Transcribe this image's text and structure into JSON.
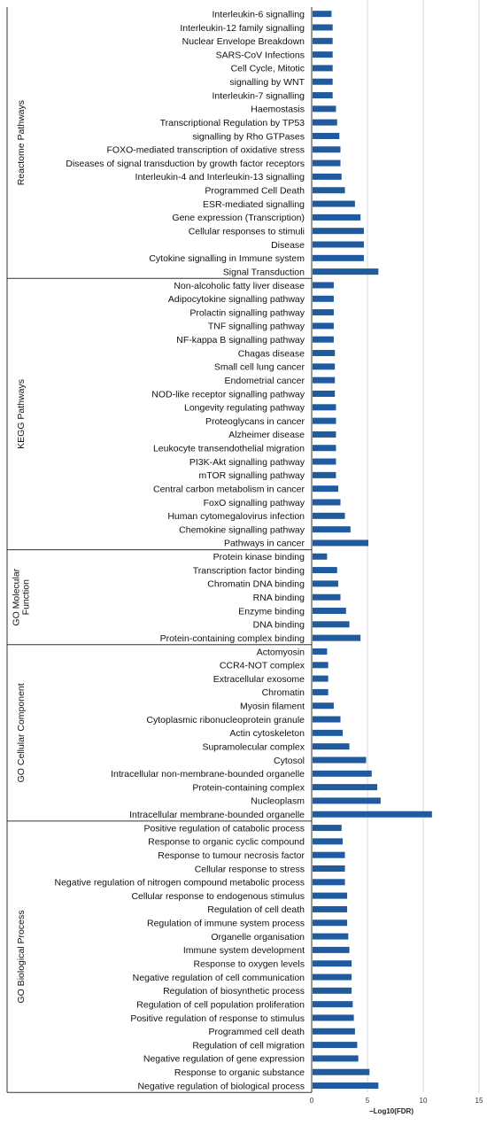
{
  "chart_data": {
    "type": "bar",
    "orientation": "horizontal",
    "xlabel": "−Log10(FDR)",
    "xlim": [
      0,
      15
    ],
    "xticks": [
      "0",
      "5",
      "10",
      "15"
    ],
    "grid": true,
    "legend": "none",
    "bar_color": "#1f5b9e",
    "groups": [
      {
        "name": "Reactome Pathways",
        "categories": [
          "Interleukin-6 signalling",
          "Interleukin-12 family signalling",
          "Nuclear Envelope Breakdown",
          "SARS-CoV Infections",
          "Cell Cycle, Mitotic",
          "signalling by WNT",
          "Interleukin-7 signalling",
          "Haemostasis",
          "Transcriptional Regulation by TP53",
          "signalling by Rho GTPases",
          "FOXO-mediated transcription of oxidative stress",
          "Diseases of signal transduction by growth factor receptors",
          "Interleukin-4 and Interleukin-13 signalling",
          "Programmed Cell Death",
          "ESR-mediated signalling",
          "Gene expression (Transcription)",
          "Cellular responses to stimuli",
          "Disease",
          "Cytokine signalling in Immune system",
          "Signal Transduction"
        ],
        "values": [
          1.7,
          1.8,
          1.8,
          1.8,
          1.8,
          1.8,
          1.8,
          2.1,
          2.2,
          2.4,
          2.5,
          2.5,
          2.6,
          2.9,
          3.8,
          4.3,
          4.6,
          4.6,
          4.6,
          5.9
        ]
      },
      {
        "name": "KEGG Pathways",
        "categories": [
          "Non-alcoholic fatty liver disease",
          "Adipocytokine signalling pathway",
          "Prolactin signalling pathway",
          "TNF signalling pathway",
          "NF-kappa B signalling pathway",
          "Chagas disease",
          "Small cell lung cancer",
          "Endometrial cancer",
          "NOD-like receptor signalling pathway",
          "Longevity regulating pathway",
          "Proteoglycans in cancer",
          "Alzheimer disease",
          "Leukocyte transendothelial migration",
          "PI3K-Akt signalling pathway",
          "mTOR signalling pathway",
          "Central carbon metabolism in cancer",
          "FoxO signalling pathway",
          "Human cytomegalovirus infection",
          "Chemokine signalling pathway",
          "Pathways in cancer"
        ],
        "values": [
          1.9,
          1.9,
          1.9,
          1.9,
          1.9,
          2.0,
          2.0,
          2.0,
          2.0,
          2.1,
          2.1,
          2.1,
          2.1,
          2.1,
          2.1,
          2.3,
          2.5,
          2.9,
          3.4,
          5.0
        ]
      },
      {
        "name": "GO Molecular Function",
        "categories": [
          "Protein kinase binding",
          "Transcription factor binding",
          "Chromatin DNA binding",
          "RNA binding",
          "Enzyme binding",
          "DNA binding",
          "Protein-containing complex binding"
        ],
        "values": [
          1.3,
          2.2,
          2.3,
          2.5,
          3.0,
          3.3,
          4.3
        ]
      },
      {
        "name": "GO Cellular Component",
        "categories": [
          "Actomyosin",
          "CCR4-NOT complex",
          "Extracellular exosome",
          "Chromatin",
          "Myosin filament",
          "Cytoplasmic ribonucleoprotein granule",
          "Actin cytoskeleton",
          "Supramolecular complex",
          "Cytosol",
          "Intracellular non-membrane-bounded organelle",
          "Protein-containing complex",
          "Nucleoplasm",
          "Intracellular membrane-bounded organelle"
        ],
        "values": [
          1.3,
          1.4,
          1.4,
          1.4,
          1.9,
          2.5,
          2.7,
          3.3,
          4.8,
          5.3,
          5.8,
          6.1,
          10.7
        ]
      },
      {
        "name": "GO Biological Process",
        "categories": [
          "Positive regulation of catabolic process",
          "Response to organic cyclic compound",
          "Response to tumour necrosis factor",
          "Cellular response to stress",
          "Negative regulation of nitrogen compound metabolic process",
          "Cellular response to endogenous stimulus",
          "Regulation of cell death",
          "Regulation of immune system process",
          "Organelle organisation",
          "Immune system development",
          "Response to oxygen levels",
          "Negative regulation of cell communication",
          "Regulation of biosynthetic process",
          "Regulation of cell population proliferation",
          "Positive regulation of response to stimulus",
          "Programmed cell death",
          "Regulation of cell migration",
          "Negative regulation of gene expression",
          "Response to organic substance",
          "Negative regulation of biological process"
        ],
        "values": [
          2.6,
          2.7,
          2.9,
          2.9,
          2.9,
          3.1,
          3.1,
          3.1,
          3.2,
          3.3,
          3.5,
          3.5,
          3.5,
          3.6,
          3.7,
          3.8,
          4.0,
          4.1,
          5.1,
          5.9
        ]
      }
    ]
  }
}
